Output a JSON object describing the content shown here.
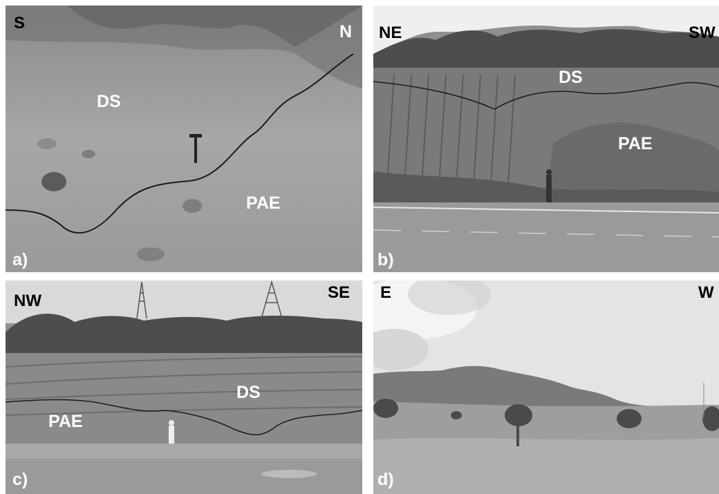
{
  "panels": {
    "a": {
      "panel_label": "a)",
      "direction_left": "S",
      "direction_right": "N",
      "unit_upper": "DS",
      "unit_lower": "PAE"
    },
    "b": {
      "panel_label": "b)",
      "direction_left": "NE",
      "direction_right": "SW",
      "unit_upper": "DS",
      "unit_lower": "PAE"
    },
    "c": {
      "panel_label": "c)",
      "direction_left": "NW",
      "direction_right": "SE",
      "unit_upper": "DS",
      "unit_lower": "PAE"
    },
    "d": {
      "panel_label": "d)",
      "direction_left": "E",
      "direction_right": "W"
    }
  }
}
